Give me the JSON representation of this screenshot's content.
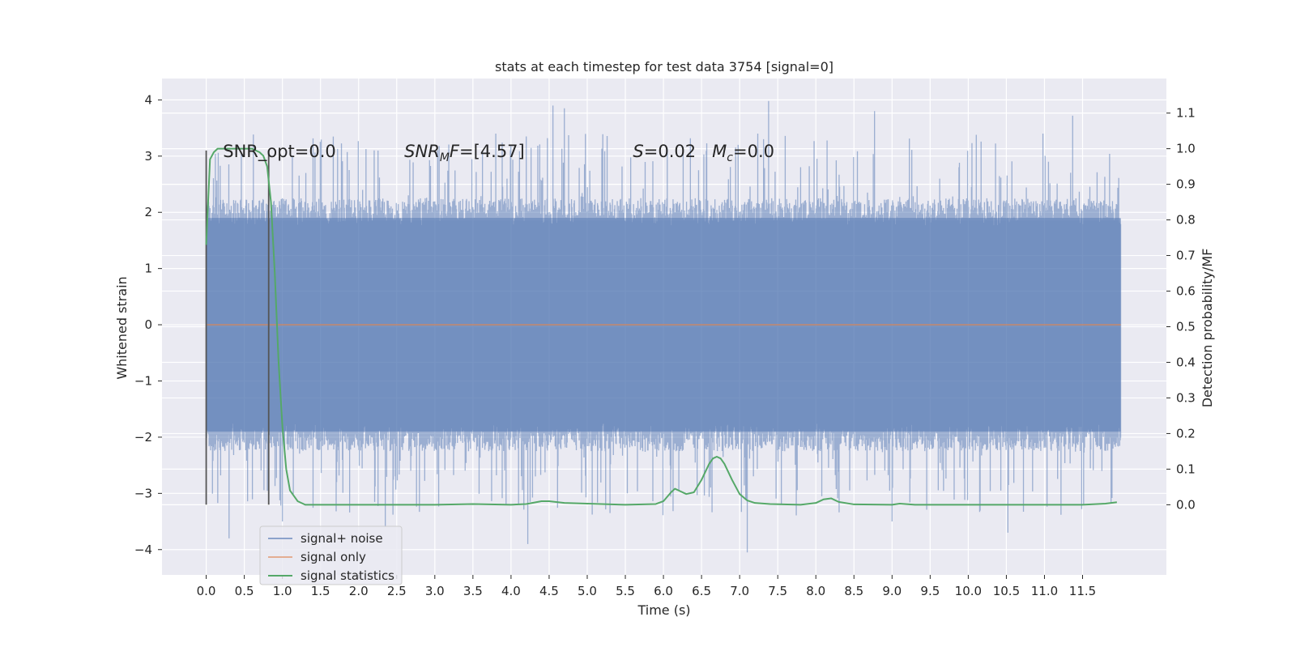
{
  "chart_data": {
    "type": "line",
    "title": "stats at each timestep for test data 3754 [signal=0]",
    "xlabel": "Time (s)",
    "ylabel": "Whitened strain",
    "y2label": "Detection probability/MF",
    "xlim": [
      -0.58,
      12.6
    ],
    "ylim": [
      -4.45,
      4.38
    ],
    "y2lim": [
      -0.197,
      1.197
    ],
    "grid": true,
    "x_ticks": [
      0.0,
      0.5,
      1.0,
      1.5,
      2.0,
      2.5,
      3.0,
      3.5,
      4.0,
      4.5,
      5.0,
      5.5,
      6.0,
      6.5,
      7.0,
      7.5,
      8.0,
      8.5,
      9.0,
      9.5,
      10.0,
      10.5,
      11.0,
      11.5
    ],
    "x_tick_labels": [
      "0.0",
      "0.5",
      "1.0",
      "1.5",
      "2.0",
      "2.5",
      "3.0",
      "3.5",
      "4.0",
      "4.5",
      "5.0",
      "5.5",
      "6.0",
      "6.5",
      "7.0",
      "7.5",
      "8.0",
      "8.5",
      "9.0",
      "9.5",
      "10.0",
      "10.5",
      "11.0",
      "11.5"
    ],
    "y_ticks": [
      -4,
      -3,
      -2,
      -1,
      0,
      1,
      2,
      3,
      4
    ],
    "y_tick_labels": [
      "−4",
      "−3",
      "−2",
      "−1",
      "0",
      "1",
      "2",
      "3",
      "4"
    ],
    "y2_ticks": [
      0.0,
      0.1,
      0.2,
      0.3,
      0.4,
      0.5,
      0.6,
      0.7,
      0.8,
      0.9,
      1.0,
      1.1
    ],
    "y2_tick_labels": [
      "0.0",
      "0.1",
      "0.2",
      "0.3",
      "0.4",
      "0.5",
      "0.6",
      "0.7",
      "0.8",
      "0.9",
      "1.0",
      "1.1"
    ],
    "noise": {
      "name": "signal+ noise",
      "color": "#4c72b0",
      "x_range": [
        0.0,
        12.0
      ],
      "typical_band": [
        -1.9,
        1.9
      ],
      "peaks": [
        {
          "x": 4.55,
          "y": 3.9
        },
        {
          "x": 4.7,
          "y": 3.85
        },
        {
          "x": 7.38,
          "y": 3.98
        },
        {
          "x": 8.77,
          "y": 3.8
        },
        {
          "x": 11.37,
          "y": 3.72
        },
        {
          "x": 10.98,
          "y": 3.4
        },
        {
          "x": 3.8,
          "y": 3.4
        },
        {
          "x": 6.98,
          "y": 3.2
        },
        {
          "x": 2.35,
          "y": -3.6
        },
        {
          "x": 4.22,
          "y": -3.9
        },
        {
          "x": 7.1,
          "y": -4.05
        },
        {
          "x": 10.52,
          "y": -3.7
        },
        {
          "x": 0.3,
          "y": -3.8
        },
        {
          "x": 9.0,
          "y": -3.5
        },
        {
          "x": 1.0,
          "y": -3.5
        }
      ]
    },
    "signal_only": {
      "name": "signal only",
      "color": "#dd8452",
      "value": 0.0
    },
    "statistics": {
      "name": "signal statistics",
      "color": "#55a868",
      "x": [
        0.0,
        0.05,
        0.1,
        0.15,
        0.2,
        0.3,
        0.4,
        0.5,
        0.6,
        0.7,
        0.75,
        0.8,
        0.85,
        0.9,
        0.95,
        1.0,
        1.05,
        1.1,
        1.2,
        1.3,
        1.5,
        2.0,
        2.5,
        3.0,
        3.5,
        4.0,
        4.2,
        4.4,
        4.5,
        4.7,
        5.0,
        5.5,
        5.9,
        6.0,
        6.1,
        6.15,
        6.2,
        6.3,
        6.4,
        6.5,
        6.6,
        6.65,
        6.7,
        6.75,
        6.8,
        6.9,
        7.0,
        7.1,
        7.2,
        7.4,
        7.8,
        8.0,
        8.1,
        8.2,
        8.3,
        8.5,
        9.0,
        9.1,
        9.3,
        10.0,
        11.0,
        11.5,
        11.8,
        11.95
      ],
      "y": [
        0.73,
        0.97,
        0.99,
        1.0,
        1.0,
        1.0,
        1.0,
        1.0,
        1.0,
        0.99,
        0.98,
        0.95,
        0.85,
        0.65,
        0.4,
        0.22,
        0.1,
        0.04,
        0.01,
        0.0,
        0.0,
        0.0,
        0.0,
        0.0,
        0.002,
        0.0,
        0.002,
        0.01,
        0.01,
        0.005,
        0.003,
        0.0,
        0.002,
        0.01,
        0.035,
        0.045,
        0.04,
        0.03,
        0.035,
        0.07,
        0.115,
        0.13,
        0.135,
        0.13,
        0.115,
        0.07,
        0.03,
        0.012,
        0.005,
        0.002,
        0.0,
        0.005,
        0.015,
        0.018,
        0.008,
        0.001,
        0.0,
        0.003,
        0.0,
        0.0,
        0.0,
        0.0,
        0.003,
        0.007
      ]
    },
    "vlines": [
      {
        "x": 0.0,
        "y_from": -3.2,
        "y_to": 3.1
      },
      {
        "x": 0.82,
        "y_from": -3.2,
        "y_to": 3.1
      }
    ],
    "annotations": [
      {
        "x": 0.22,
        "y": 3.1,
        "text": "SNR_opt=0.0",
        "kind": "plain"
      },
      {
        "x": 2.6,
        "y": 3.1,
        "prefix": "SNR",
        "sub": "M",
        "suffix": "F=[4.57]",
        "kind": "sub"
      },
      {
        "x": 5.6,
        "y": 3.1,
        "text": "S=0.02   M_c=0.0",
        "kind": "s_mc",
        "s_value": "0.02",
        "mc_value": "0.0"
      }
    ],
    "legend": {
      "placement": "lower-left",
      "entries": [
        "signal+ noise",
        "signal only",
        "signal statistics"
      ]
    }
  }
}
